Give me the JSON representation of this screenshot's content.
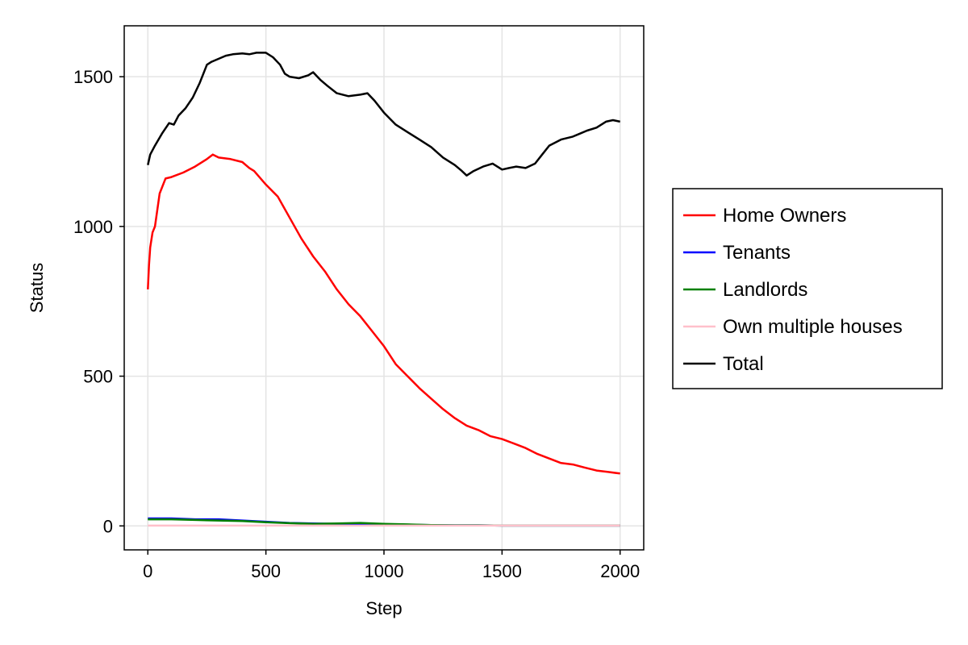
{
  "chart_data": {
    "type": "line",
    "title": "",
    "xlabel": "Step",
    "ylabel": "Status",
    "xlim": [
      -100,
      2100
    ],
    "ylim": [
      -80,
      1670
    ],
    "xticks": [
      0,
      500,
      1000,
      1500,
      2000
    ],
    "yticks": [
      0,
      500,
      1000,
      1500
    ],
    "grid": true,
    "legend_position": "right",
    "series": [
      {
        "name": "Home Owners",
        "color": "#ff0000",
        "x": [
          0,
          5,
          10,
          20,
          30,
          50,
          75,
          100,
          150,
          200,
          250,
          275,
          300,
          350,
          400,
          430,
          450,
          500,
          550,
          600,
          650,
          700,
          750,
          800,
          850,
          900,
          950,
          1000,
          1050,
          1100,
          1150,
          1200,
          1250,
          1300,
          1350,
          1400,
          1450,
          1500,
          1550,
          1600,
          1650,
          1700,
          1750,
          1800,
          1850,
          1900,
          1950,
          2000
        ],
        "y": [
          790,
          870,
          930,
          980,
          1000,
          1110,
          1160,
          1165,
          1180,
          1200,
          1225,
          1240,
          1230,
          1225,
          1215,
          1195,
          1185,
          1140,
          1100,
          1030,
          960,
          900,
          850,
          790,
          740,
          700,
          650,
          600,
          540,
          500,
          460,
          425,
          390,
          360,
          335,
          320,
          300,
          290,
          275,
          260,
          240,
          225,
          210,
          205,
          195,
          185,
          180,
          175
        ]
      },
      {
        "name": "Tenants",
        "color": "#0000ff",
        "x": [
          0,
          100,
          200,
          300,
          400,
          500,
          600,
          700,
          800,
          900,
          1000,
          1100,
          1200,
          1300,
          1400,
          1500,
          1600,
          1700,
          1800,
          1900,
          2000
        ],
        "y": [
          25,
          25,
          22,
          22,
          18,
          14,
          10,
          8,
          7,
          6,
          5,
          4,
          3,
          2,
          2,
          1,
          1,
          1,
          1,
          1,
          1
        ]
      },
      {
        "name": "Landlords",
        "color": "#008000",
        "x": [
          0,
          100,
          200,
          300,
          400,
          500,
          600,
          700,
          800,
          900,
          1000,
          1100,
          1200,
          1300,
          1400,
          1500,
          1600,
          1700,
          1800,
          1900,
          2000
        ],
        "y": [
          22,
          22,
          20,
          18,
          16,
          12,
          9,
          7,
          8,
          10,
          7,
          5,
          3,
          2,
          2,
          1,
          1,
          1,
          1,
          1,
          1
        ]
      },
      {
        "name": "Own multiple houses",
        "color": "#ffc0cb",
        "x": [
          0,
          500,
          1000,
          1500,
          2000
        ],
        "y": [
          1,
          1,
          1,
          1,
          1
        ]
      },
      {
        "name": "Total",
        "color": "#000000",
        "x": [
          0,
          10,
          30,
          60,
          90,
          110,
          130,
          160,
          190,
          220,
          250,
          270,
          300,
          330,
          360,
          400,
          430,
          460,
          500,
          530,
          560,
          580,
          600,
          640,
          680,
          700,
          730,
          760,
          800,
          850,
          900,
          930,
          960,
          1000,
          1050,
          1100,
          1150,
          1200,
          1250,
          1300,
          1330,
          1350,
          1380,
          1420,
          1460,
          1500,
          1530,
          1560,
          1600,
          1640,
          1670,
          1700,
          1750,
          1800,
          1830,
          1860,
          1900,
          1940,
          1970,
          2000
        ],
        "y": [
          1205,
          1240,
          1270,
          1310,
          1345,
          1340,
          1370,
          1395,
          1430,
          1480,
          1540,
          1550,
          1560,
          1570,
          1575,
          1578,
          1575,
          1580,
          1580,
          1565,
          1540,
          1510,
          1500,
          1495,
          1505,
          1515,
          1490,
          1470,
          1445,
          1435,
          1440,
          1445,
          1420,
          1380,
          1340,
          1315,
          1290,
          1265,
          1230,
          1205,
          1185,
          1170,
          1185,
          1200,
          1210,
          1190,
          1195,
          1200,
          1195,
          1210,
          1240,
          1270,
          1290,
          1300,
          1310,
          1320,
          1330,
          1350,
          1355,
          1350
        ]
      }
    ]
  }
}
